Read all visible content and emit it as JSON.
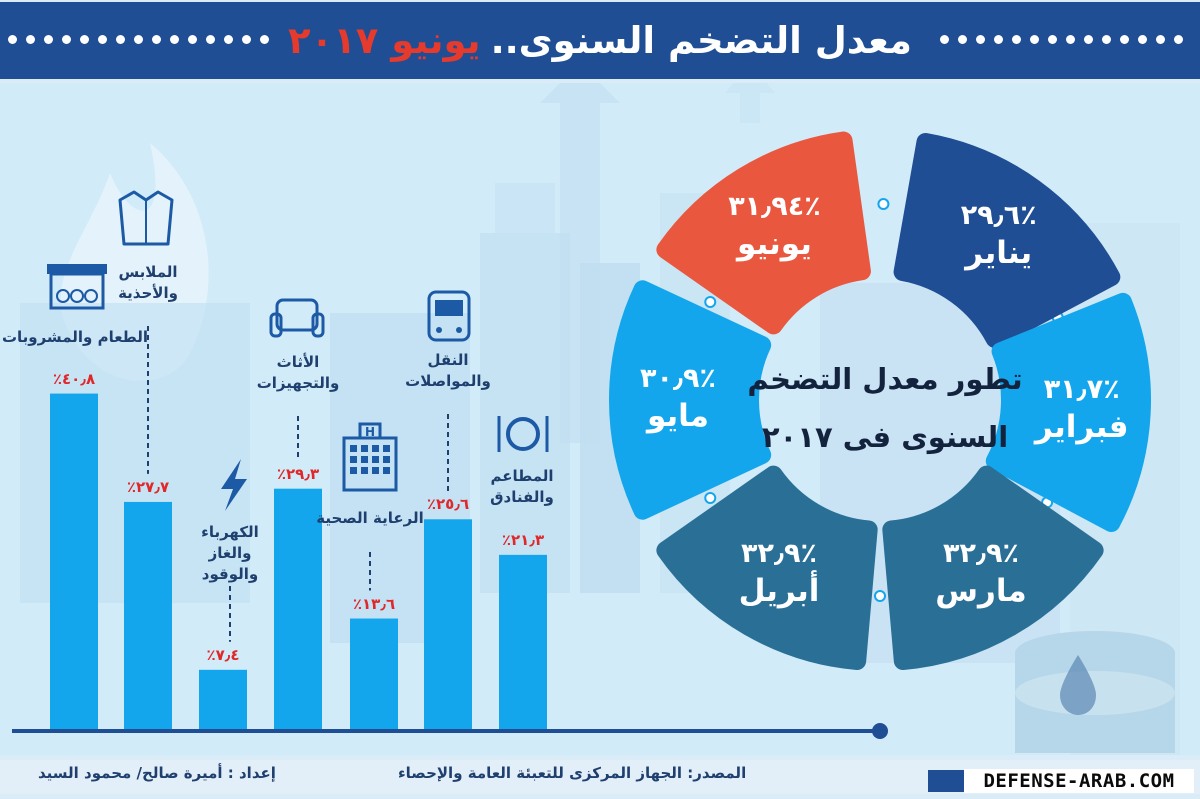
{
  "header": {
    "title_main": "معدل التضخم السنوى..",
    "title_highlight": "يونيو ٢٠١٧"
  },
  "center_title": {
    "line1": "تطور معدل التضخم",
    "line2": "السنوى فى ٢٠١٧"
  },
  "chart_data": [
    {
      "type": "bar",
      "categories": [
        "الطعام والمشروبات",
        "الملابس والأحذية",
        "الكهرباء والغاز والوقود",
        "الأثاث والتجهيزات",
        "الرعاية الصحية",
        "النقل والمواصلات",
        "المطاعم والفنادق"
      ],
      "category_icons": [
        "market-stall-icon",
        "shirt-icon",
        "lightning-icon",
        "armchair-icon",
        "hospital-icon",
        "bus-icon",
        "plate-cutlery-icon"
      ],
      "values": [
        40.8,
        27.7,
        7.4,
        29.3,
        13.6,
        25.6,
        21.3
      ],
      "value_labels": [
        "٪٤٠٫٨",
        "٪٢٧٫٧",
        "٪٧٫٤",
        "٪٢٩٫٣",
        "٪١٣٫٦",
        "٪٢٥٫٦",
        "٪٢١٫٣"
      ],
      "ylim": [
        0,
        45
      ],
      "grid": false,
      "bar_color": "#14a6ec",
      "label_color": "#e0282a"
    },
    {
      "type": "pie",
      "categories": [
        "يناير",
        "فبراير",
        "مارس",
        "أبريل",
        "مايو",
        "يونيو"
      ],
      "values": [
        29.6,
        31.7,
        32.9,
        32.9,
        30.9,
        31.94
      ],
      "value_labels": [
        "٪٢٩٫٦",
        "٪٣١٫٧",
        "٪٣٢٫٩",
        "٪٣٢٫٩",
        "٪٣٠٫٩",
        "٪٣١٫٩٤"
      ],
      "colors": [
        "#1f4e94",
        "#14a6ec",
        "#2a6f96",
        "#2a6f96",
        "#14a6ec",
        "#e9573f"
      ]
    }
  ],
  "footer": {
    "credits": "إعداد : أميرة صالح/ محمود السيد",
    "source": "المصدر: الجهاز المركزى للتعبئة العامة والإحصاء",
    "brand": "DEFENSE-ARAB.COM"
  },
  "colors": {
    "header": "#1f4e94",
    "highlight": "#e53a2c",
    "background": "#d2ebf8",
    "text_dark": "#1f3f6e",
    "icon": "#1d5aa6"
  }
}
